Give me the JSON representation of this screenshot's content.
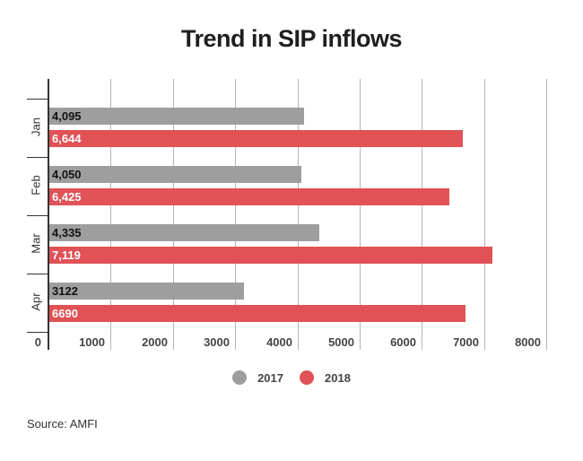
{
  "title": "Trend in SIP inflows",
  "source": "Source: AMFI",
  "colors": {
    "2017": "#9e9e9e",
    "2018": "#e05256"
  },
  "legend": [
    {
      "label": "2017",
      "color": "#9e9e9e"
    },
    {
      "label": "2018",
      "color": "#e05256"
    }
  ],
  "x_ticks": [
    "0",
    "1000",
    "2000",
    "3000",
    "4000",
    "5000",
    "6000",
    "7000",
    "8000"
  ],
  "categories": [
    "Jan",
    "Feb",
    "Mar",
    "Apr"
  ],
  "bar_labels": {
    "2017": [
      "4,095",
      "4,050",
      "4,335",
      "3122"
    ],
    "2018": [
      "6,644",
      "6,425",
      "7,119",
      "6690"
    ]
  },
  "chart_data": {
    "type": "bar",
    "orientation": "horizontal",
    "title": "Trend in SIP inflows",
    "categories": [
      "Jan",
      "Feb",
      "Mar",
      "Apr"
    ],
    "series": [
      {
        "name": "2017",
        "values": [
          4095,
          4050,
          4335,
          3122
        ],
        "color": "#9e9e9e"
      },
      {
        "name": "2018",
        "values": [
          6644,
          6425,
          7119,
          6690
        ],
        "color": "#e05256"
      }
    ],
    "xlabel": "",
    "ylabel": "",
    "xlim": [
      0,
      8000
    ],
    "x_ticks": [
      0,
      1000,
      2000,
      3000,
      4000,
      5000,
      6000,
      7000,
      8000
    ],
    "grid": true,
    "legend_position": "bottom",
    "data_labels": true,
    "annotations": [
      "Source: AMFI"
    ]
  }
}
